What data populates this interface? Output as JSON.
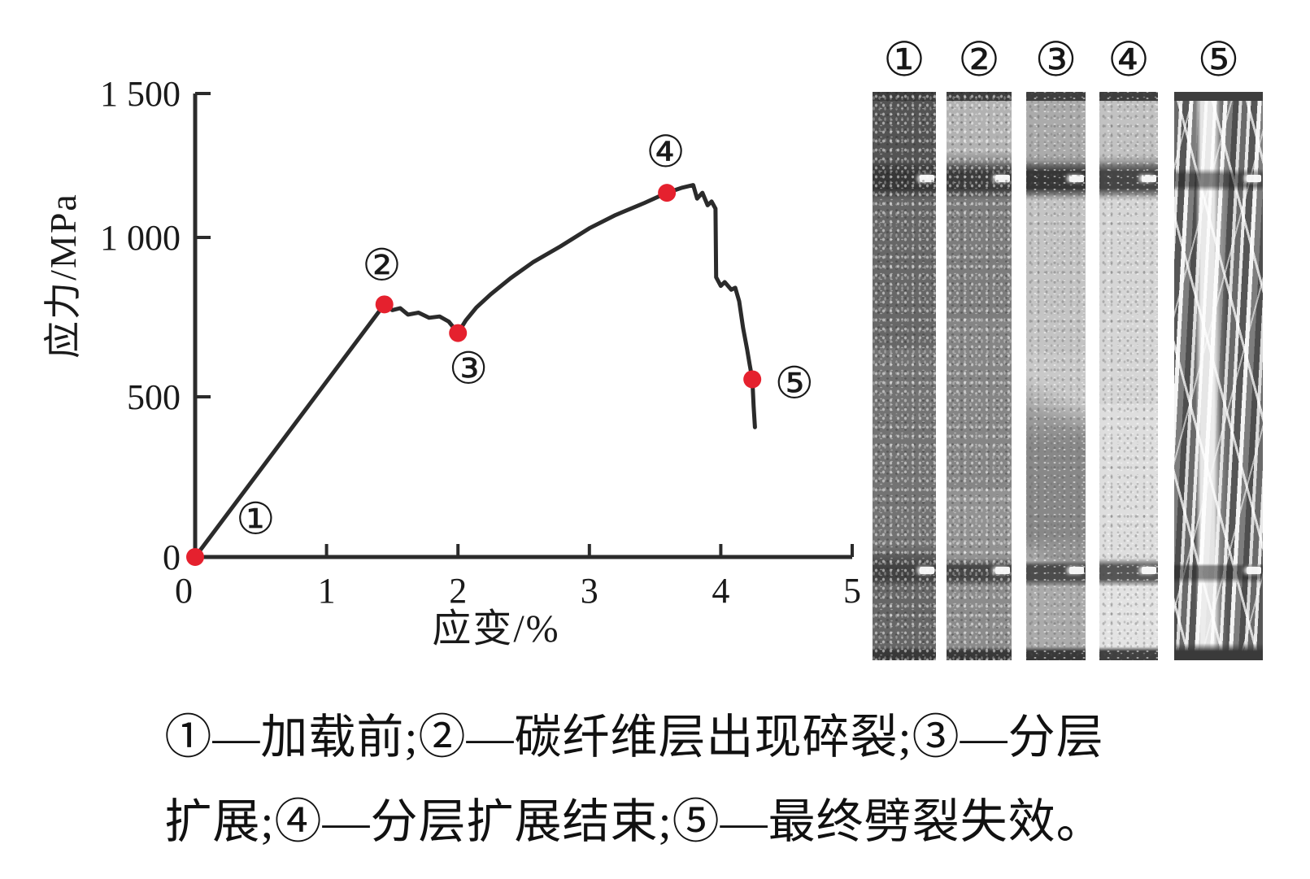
{
  "figure": {
    "caption_line1": "①—加载前;②—碳纤维层出现碎裂;③—分层",
    "caption_line2": "扩展;④—分层扩展结束;⑤—最终劈裂失效。"
  },
  "specimens": {
    "items": [
      {
        "label": "①"
      },
      {
        "label": "②"
      },
      {
        "label": "③"
      },
      {
        "label": "④"
      },
      {
        "label": "⑤"
      }
    ]
  },
  "chart_data": {
    "type": "line",
    "title": "",
    "xlabel": "应变/%",
    "ylabel": "应力/MPa",
    "xlim": [
      0,
      5
    ],
    "ylim": [
      0,
      1500
    ],
    "x_ticks": [
      0,
      1,
      2,
      3,
      4,
      5
    ],
    "x_tick_labels": [
      "0",
      "1",
      "2",
      "3",
      "4",
      "5"
    ],
    "y_ticks": [
      0,
      500,
      1000,
      1500
    ],
    "y_tick_labels": [
      "0",
      "500",
      "1 000",
      "1 500"
    ],
    "grid": false,
    "legend": null,
    "line_color": "#2b2b2b",
    "marker_color": "#e5212e",
    "curve": [
      [
        0,
        0
      ],
      [
        1.44,
        790
      ],
      [
        1.5,
        772
      ],
      [
        1.56,
        778
      ],
      [
        1.62,
        758
      ],
      [
        1.7,
        764
      ],
      [
        1.78,
        748
      ],
      [
        1.86,
        752
      ],
      [
        1.93,
        736
      ],
      [
        2.0,
        700
      ],
      [
        2.06,
        740
      ],
      [
        2.14,
        780
      ],
      [
        2.25,
        822
      ],
      [
        2.4,
        872
      ],
      [
        2.57,
        922
      ],
      [
        2.78,
        972
      ],
      [
        3.0,
        1032
      ],
      [
        3.2,
        1078
      ],
      [
        3.42,
        1120
      ],
      [
        3.59,
        1155
      ],
      [
        3.7,
        1172
      ],
      [
        3.79,
        1182
      ],
      [
        3.82,
        1135
      ],
      [
        3.86,
        1155
      ],
      [
        3.9,
        1112
      ],
      [
        3.93,
        1125
      ],
      [
        3.96,
        1100
      ],
      [
        3.965,
        875
      ],
      [
        4.0,
        848
      ],
      [
        4.03,
        860
      ],
      [
        4.08,
        836
      ],
      [
        4.11,
        842
      ],
      [
        4.14,
        800
      ],
      [
        4.17,
        715
      ],
      [
        4.2,
        650
      ],
      [
        4.22,
        600
      ],
      [
        4.24,
        555
      ],
      [
        4.25,
        470
      ],
      [
        4.26,
        405
      ]
    ],
    "annotated_points": [
      {
        "marker": "①",
        "x": 0,
        "y": 0,
        "label_x": 0.46,
        "label_y": 120
      },
      {
        "marker": "②",
        "x": 1.44,
        "y": 790,
        "label_x": 1.42,
        "label_y": 915
      },
      {
        "marker": "③",
        "x": 2.0,
        "y": 700,
        "label_x": 2.08,
        "label_y": 590
      },
      {
        "marker": "④",
        "x": 3.59,
        "y": 1155,
        "label_x": 3.58,
        "label_y": 1300
      },
      {
        "marker": "⑤",
        "x": 4.24,
        "y": 555,
        "label_x": 4.56,
        "label_y": 545
      }
    ]
  }
}
